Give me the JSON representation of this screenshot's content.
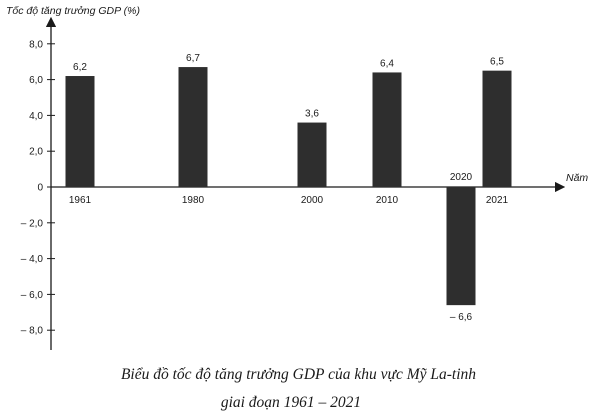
{
  "chart_data": {
    "type": "bar",
    "y_axis_title": "Tốc độ tăng trưởng GDP (%)",
    "x_axis_title": "Năm",
    "categories": [
      "1961",
      "1980",
      "2000",
      "2010",
      "2020",
      "2021"
    ],
    "values": [
      6.2,
      6.7,
      3.6,
      6.4,
      -6.6,
      6.5
    ],
    "value_labels": [
      "6,2",
      "6,7",
      "3,6",
      "6,4",
      "– 6,6",
      "6,5"
    ],
    "y_ticks": [
      8.0,
      6.0,
      4.0,
      2.0,
      0,
      -2.0,
      -4.0,
      -6.0,
      -8.0
    ],
    "y_tick_labels": [
      "8,0",
      "6,0",
      "4,0",
      "2,0",
      "0",
      "– 2,0",
      "– 4,0",
      "– 6,0",
      "– 8,0"
    ],
    "ylim": [
      -9,
      9.5
    ],
    "grid": false,
    "bar_color": "#2e2e2e",
    "axis_color": "#1a1a1a"
  },
  "caption": {
    "line1": "Biểu đồ tốc độ tăng trưởng GDP của khu vực Mỹ La-tinh",
    "line2": "giai đoạn 1961 – 2021"
  }
}
